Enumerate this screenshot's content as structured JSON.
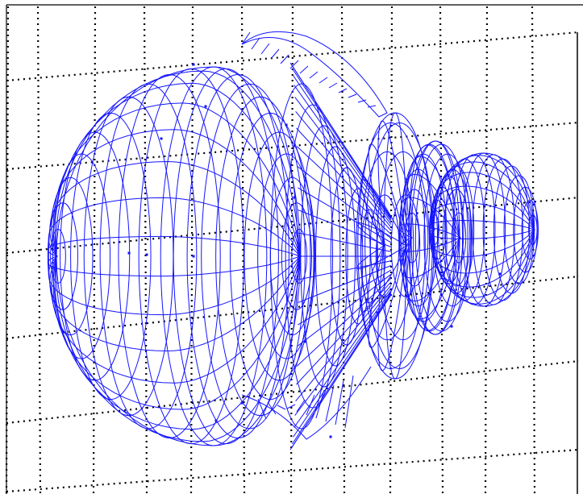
{
  "figure": {
    "kind": "3d-wireframe-radiation-pattern",
    "mesh_color": "#1414ff",
    "grid_color": "#000000",
    "grid_style": "dotted",
    "background": "#ffffff",
    "lobes": [
      {
        "role": "main-lobe",
        "relative_size": 1.0
      },
      {
        "role": "first-side-lobe",
        "relative_size": 0.36
      },
      {
        "role": "second-side-lobe",
        "relative_size": 0.2
      },
      {
        "role": "back-lobe",
        "relative_size": 0.16
      }
    ]
  }
}
